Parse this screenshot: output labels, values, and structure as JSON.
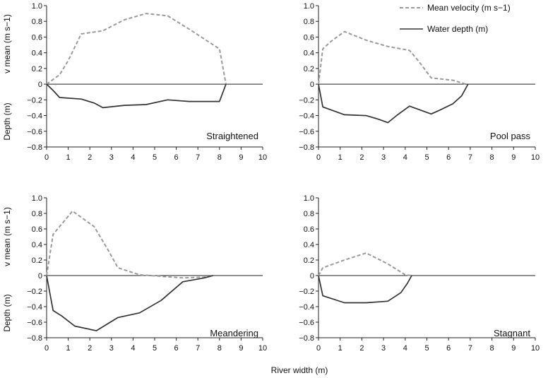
{
  "figure": {
    "xlabel": "River width (m)"
  },
  "legend": {
    "position": "top-right",
    "items": [
      {
        "name": "Mean velocity (m s−1)",
        "style": "dashed",
        "color": "#9a9a9a"
      },
      {
        "name": "Water depth (m)",
        "style": "solid",
        "color": "#333333"
      }
    ]
  },
  "axis_text": {
    "ylabel_velocity_row1": "v mean (m s−1)",
    "ylabel_velocity_row2": "v mean (m s−1)",
    "ylabel_depth_row1": "Depth (m)",
    "ylabel_depth_row2": "Depth (m)"
  },
  "chart_data": [
    {
      "type": "line",
      "panel": "Straightened",
      "xlim": [
        0,
        10
      ],
      "ylim": [
        -0.8,
        1.0
      ],
      "x_ticks": [
        0,
        1,
        2,
        3,
        4,
        5,
        6,
        7,
        8,
        9,
        10
      ],
      "y_ticks": [
        1.0,
        0.8,
        0.6,
        0.4,
        0.2,
        0,
        -0.2,
        -0.4,
        -0.6,
        -0.8
      ],
      "y_tick_labels": [
        "1.0",
        "0.8",
        "0.6",
        "0.4",
        "0.2",
        "0",
        "−0.2",
        "−0.4",
        "−0.6",
        "−0.8"
      ],
      "series": [
        {
          "name": "Mean velocity (m s−1)",
          "x": [
            0,
            0.6,
            1,
            1.6,
            2.6,
            3.6,
            4.6,
            5.6,
            6.6,
            7.6,
            8,
            8.3
          ],
          "y": [
            0,
            0.12,
            0.3,
            0.64,
            0.68,
            0.82,
            0.9,
            0.87,
            0.7,
            0.52,
            0.45,
            0
          ]
        },
        {
          "name": "Water depth (m)",
          "x": [
            0,
            0.3,
            0.6,
            1.6,
            2.2,
            2.6,
            3.6,
            4.6,
            5.6,
            6.6,
            7.6,
            8.0,
            8.3
          ],
          "y": [
            0,
            -0.08,
            -0.17,
            -0.19,
            -0.24,
            -0.3,
            -0.27,
            -0.26,
            -0.2,
            -0.22,
            -0.22,
            -0.22,
            0
          ]
        }
      ]
    },
    {
      "type": "line",
      "panel": "Pool pass",
      "xlim": [
        0,
        10
      ],
      "ylim": [
        -0.8,
        1.0
      ],
      "x_ticks": [
        0,
        1,
        2,
        3,
        4,
        5,
        6,
        7,
        8,
        9,
        10
      ],
      "y_ticks": [
        1.0,
        0.8,
        0.6,
        0.4,
        0.2,
        0,
        -0.2,
        -0.4,
        -0.6,
        -0.8
      ],
      "y_tick_labels": [
        "1.0",
        "0.8",
        "0.6",
        "0.4",
        "0.2",
        "0",
        "−0.2",
        "−0.4",
        "−0.6",
        "−0.8"
      ],
      "series": [
        {
          "name": "Mean velocity (m s−1)",
          "x": [
            0,
            0.2,
            0.6,
            1.2,
            2.2,
            3.2,
            4.2,
            4.6,
            5.2,
            6.2,
            6.8
          ],
          "y": [
            0,
            0.45,
            0.55,
            0.67,
            0.56,
            0.48,
            0.43,
            0.3,
            0.08,
            0.05,
            0
          ]
        },
        {
          "name": "Water depth (m)",
          "x": [
            0,
            0.2,
            1.2,
            2.2,
            2.8,
            3.2,
            3.6,
            4.2,
            4.6,
            5.2,
            5.6,
            6.2,
            6.6,
            6.9
          ],
          "y": [
            0,
            -0.29,
            -0.39,
            -0.4,
            -0.45,
            -0.49,
            -0.4,
            -0.28,
            -0.32,
            -0.38,
            -0.33,
            -0.25,
            -0.15,
            0
          ]
        }
      ]
    },
    {
      "type": "line",
      "panel": "Meandering",
      "xlim": [
        0,
        10
      ],
      "ylim": [
        -0.8,
        1.0
      ],
      "x_ticks": [
        0,
        1,
        2,
        3,
        4,
        5,
        6,
        7,
        8,
        9,
        10
      ],
      "y_ticks": [
        1.0,
        0.8,
        0.6,
        0.4,
        0.2,
        0,
        -0.2,
        -0.4,
        -0.6,
        -0.8
      ],
      "y_tick_labels": [
        "1.0",
        "0.8",
        "0.6",
        "0.4",
        "0.2",
        "0",
        "−0.2",
        "−0.4",
        "−0.6",
        "−0.8"
      ],
      "series": [
        {
          "name": "Mean velocity (m s−1)",
          "x": [
            0,
            0.3,
            1.2,
            2.2,
            2.8,
            3.3,
            4.3,
            5.3,
            6.3,
            7.3,
            7.7
          ],
          "y": [
            0,
            0.53,
            0.83,
            0.63,
            0.35,
            0.1,
            0.01,
            -0.01,
            -0.03,
            -0.02,
            0
          ]
        },
        {
          "name": "Water depth (m)",
          "x": [
            0,
            0.3,
            0.7,
            1.3,
            2.3,
            3.3,
            4.3,
            5.3,
            6.3,
            7.3,
            7.7
          ],
          "y": [
            0,
            -0.45,
            -0.52,
            -0.65,
            -0.71,
            -0.54,
            -0.48,
            -0.32,
            -0.08,
            -0.03,
            0
          ]
        }
      ]
    },
    {
      "type": "line",
      "panel": "Stagnant",
      "xlim": [
        0,
        10
      ],
      "ylim": [
        -0.8,
        1.0
      ],
      "x_ticks": [
        0,
        1,
        2,
        3,
        4,
        5,
        6,
        7,
        8,
        9,
        10
      ],
      "y_ticks": [
        1.0,
        0.8,
        0.6,
        0.4,
        0.2,
        0,
        -0.2,
        -0.4,
        -0.6,
        -0.8
      ],
      "y_tick_labels": [
        "1.0",
        "0.8",
        "0.6",
        "0.4",
        "0.2",
        "0",
        "−0.2",
        "−0.4",
        "−0.6",
        "−0.8"
      ],
      "series": [
        {
          "name": "Mean velocity (m s−1)",
          "x": [
            0,
            0.2,
            1.2,
            2.2,
            3.2,
            4.0,
            4.3
          ],
          "y": [
            0,
            0.1,
            0.2,
            0.29,
            0.15,
            0.01,
            0
          ]
        },
        {
          "name": "Water depth (m)",
          "x": [
            0,
            0.2,
            1.2,
            2.2,
            3.2,
            3.8,
            4.1,
            4.3
          ],
          "y": [
            0,
            -0.26,
            -0.35,
            -0.35,
            -0.33,
            -0.22,
            -0.1,
            0
          ]
        }
      ]
    }
  ]
}
